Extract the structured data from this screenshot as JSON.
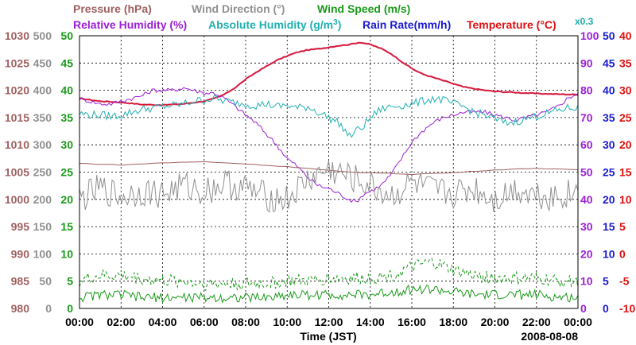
{
  "chart_data": {
    "type": "line",
    "title_rows": [
      [
        {
          "key": "pressure",
          "text": "Pressure (hPa)",
          "color": "#a06060"
        },
        {
          "key": "wind_dir",
          "text": "Wind Direction (°)",
          "color": "#909090"
        },
        {
          "key": "wind_speed",
          "text": "Wind Speed (m/s)",
          "color": "#1a9a1a"
        }
      ],
      [
        {
          "key": "rh",
          "text": "Relative Humidity (%)",
          "color": "#9b1fd6"
        },
        {
          "key": "abs_hum",
          "text": "Absolute Humidity (g/m",
          "sup": "3",
          "tail": ")",
          "color": "#20b0b0"
        },
        {
          "key": "rain",
          "text": "Rain Rate(mm/h)",
          "color": "#1a1ad0"
        },
        {
          "key": "temp",
          "text": "Temperature (°C)",
          "color": "#e01010"
        }
      ]
    ],
    "scale_note": "x0.3",
    "xlabel": "Time (JST)",
    "date": "2008-08-08",
    "x_ticks": [
      "00:00",
      "02:00",
      "04:00",
      "06:00",
      "08:00",
      "10:00",
      "12:00",
      "14:00",
      "16:00",
      "18:00",
      "20:00",
      "22:00",
      "00:00"
    ],
    "xlim_hours": [
      0,
      24
    ],
    "axes": {
      "pressure": {
        "ylim": [
          980,
          1030
        ],
        "ticks": [
          "1030",
          "1025",
          "1020",
          "1015",
          "1010",
          "1005",
          "1000",
          "995",
          "990",
          "985",
          "980"
        ],
        "color": "#a06060"
      },
      "wind_dir": {
        "ylim": [
          0,
          500
        ],
        "ticks": [
          "500",
          "450",
          "400",
          "350",
          "300",
          "250",
          "200",
          "150",
          "100",
          "50",
          "0"
        ],
        "color": "#909090"
      },
      "wind_speed": {
        "ylim": [
          0,
          50
        ],
        "ticks": [
          "50",
          "45",
          "40",
          "35",
          "30",
          "25",
          "20",
          "15",
          "10",
          "5",
          "0"
        ],
        "color": "#1a9a1a"
      },
      "rh": {
        "ylim": [
          0,
          100
        ],
        "ticks": [
          "100",
          "90",
          "80",
          "70",
          "60",
          "50",
          "40",
          "30",
          "20",
          "10",
          "0"
        ],
        "color": "#9b1fd6"
      },
      "rain": {
        "ylim": [
          0,
          50
        ],
        "ticks": [
          "50",
          "45",
          "40",
          "35",
          "30",
          "25",
          "20",
          "15",
          "10",
          "5",
          "0"
        ],
        "color": "#1a1ad0"
      },
      "temp": {
        "ylim": [
          -10,
          40
        ],
        "ticks": [
          "40",
          "35",
          "30",
          "25",
          "20",
          "15",
          "10",
          "5",
          "0",
          "-5",
          "-10"
        ],
        "color": "#e01010"
      },
      "abs_hum": {
        "ylim": [
          0,
          150
        ],
        "display_scale": 0.3
      }
    },
    "series": [
      {
        "name": "Temperature",
        "unit": "°C",
        "color": "#e01010",
        "x": [
          0,
          1,
          2,
          3,
          4,
          5,
          6,
          6.5,
          7,
          7.5,
          8,
          8.5,
          9,
          9.5,
          10,
          10.5,
          11,
          11.5,
          12,
          12.5,
          13,
          13.5,
          14,
          14.5,
          15,
          15.5,
          16,
          16.5,
          17,
          17.5,
          18,
          18.5,
          19,
          19.5,
          20,
          21,
          22,
          23,
          24
        ],
        "values": [
          28.5,
          28,
          27.8,
          27.4,
          27.3,
          27.5,
          28,
          28.5,
          29.3,
          30.5,
          32,
          33.3,
          34.4,
          35.5,
          36.3,
          37,
          37.4,
          37.6,
          37.9,
          38.2,
          38.4,
          38.8,
          38.4,
          37.7,
          36.7,
          35.3,
          34,
          33,
          32.4,
          31.8,
          31.2,
          30.6,
          30.3,
          30,
          29.8,
          29.6,
          29.4,
          29.3,
          29.2
        ]
      },
      {
        "name": "Relative Humidity",
        "unit": "%",
        "color": "#9b1fd6",
        "x": [
          0,
          0.5,
          1,
          1.5,
          2,
          2.5,
          3,
          3.5,
          4,
          4.5,
          5,
          5.5,
          6,
          6.5,
          7,
          7.5,
          8,
          8.5,
          9,
          9.5,
          10,
          10.5,
          11,
          11.5,
          12,
          12.5,
          13,
          13.3,
          13.7,
          14,
          14.5,
          15,
          15.5,
          16,
          16.5,
          17,
          17.5,
          18,
          18.5,
          19,
          19.5,
          20,
          20.5,
          21,
          21.5,
          22,
          22.5,
          23,
          23.5,
          24
        ],
        "values": [
          77,
          76,
          75,
          75,
          76,
          77,
          78,
          80,
          80,
          80,
          81,
          80,
          79,
          79,
          77,
          74,
          71,
          68,
          64,
          60,
          55,
          52,
          48,
          45,
          44,
          42,
          40,
          39,
          42,
          43,
          45,
          49,
          55,
          61,
          65,
          68,
          70,
          71,
          72,
          72,
          72,
          71,
          70,
          69,
          70,
          71,
          72,
          74,
          77,
          79
        ]
      },
      {
        "name": "Absolute Humidity",
        "unit": "g/m3 x0.3",
        "color": "#20b0b0",
        "x": [
          0,
          0.5,
          1,
          1.5,
          2,
          2.5,
          3,
          3.5,
          4,
          4.5,
          5,
          5.5,
          6,
          6.5,
          7,
          7.5,
          8,
          8.5,
          9,
          9.5,
          10,
          10.5,
          11,
          11.5,
          12,
          12.5,
          13,
          13.3,
          13.7,
          14,
          14.5,
          15,
          15.5,
          16,
          16.5,
          17,
          17.5,
          18,
          18.5,
          19,
          19.5,
          20,
          20.5,
          21,
          21.5,
          22,
          22.5,
          23,
          23.5,
          24
        ],
        "values": [
          71.5,
          71,
          71,
          70.5,
          71,
          72,
          73,
          73.5,
          74,
          74.5,
          75,
          76,
          76.5,
          77,
          76,
          75.5,
          75,
          74.5,
          75,
          74,
          74.5,
          73.5,
          74,
          72,
          70,
          68,
          63,
          65,
          67,
          70,
          73,
          74,
          74.5,
          75,
          76,
          77,
          76.5,
          75,
          74,
          72,
          71,
          69.5,
          68,
          68.5,
          69.5,
          70.5,
          71.5,
          72.5,
          73.5,
          73.5
        ]
      },
      {
        "name": "Pressure",
        "unit": "hPa",
        "color": "#a06060",
        "x": [
          0,
          2,
          4,
          6,
          8,
          10,
          12,
          13,
          14,
          16,
          18,
          20,
          22,
          24
        ],
        "values": [
          1006.6,
          1006.3,
          1006.7,
          1006.9,
          1006.5,
          1006.0,
          1005.3,
          1005.0,
          1004.9,
          1004.6,
          1004.9,
          1005.4,
          1005.7,
          1005.4
        ]
      },
      {
        "name": "Wind Direction",
        "unit": "°",
        "color": "#909090",
        "x": [
          0,
          1,
          2,
          3,
          4,
          5,
          6,
          7,
          8,
          9,
          10,
          11,
          12,
          13,
          14,
          15,
          16,
          17,
          18,
          19,
          20,
          21,
          22,
          23,
          24
        ],
        "values": [
          200,
          220,
          205,
          215,
          210,
          225,
          215,
          230,
          220,
          205,
          200,
          235,
          255,
          240,
          225,
          205,
          230,
          215,
          210,
          220,
          200,
          220,
          210,
          205,
          215
        ]
      },
      {
        "name": "Wind Speed (max)",
        "unit": "m/s",
        "color": "#1a9a1a",
        "dashed": true,
        "x": [
          0,
          1,
          2,
          3,
          4,
          5,
          6,
          7,
          8,
          9,
          10,
          11,
          12,
          13,
          14,
          15,
          16,
          17,
          18,
          19,
          20,
          21,
          22,
          23,
          24
        ],
        "values": [
          5,
          6,
          6,
          5.5,
          5,
          5,
          4.5,
          4.5,
          4.5,
          4.5,
          5,
          5,
          5.5,
          5.5,
          5.5,
          6,
          7.5,
          8.5,
          7,
          6,
          5.5,
          5.5,
          5.5,
          5,
          5
        ]
      },
      {
        "name": "Wind Speed (mean)",
        "unit": "m/s",
        "color": "#1a9a1a",
        "dashed": false,
        "x": [
          0,
          1,
          2,
          3,
          4,
          5,
          6,
          7,
          8,
          9,
          10,
          11,
          12,
          13,
          14,
          15,
          16,
          17,
          18,
          19,
          20,
          21,
          22,
          23,
          24
        ],
        "values": [
          2,
          2.5,
          2.5,
          2,
          2,
          2,
          2,
          2,
          2,
          2,
          2.5,
          2.5,
          2.5,
          2.5,
          2.5,
          3,
          3.5,
          3.5,
          3,
          2.5,
          2.5,
          2.5,
          2.5,
          2,
          2
        ]
      },
      {
        "name": "Rain Rate",
        "unit": "mm/h",
        "color": "#1a1ad0",
        "x": [
          0,
          24
        ],
        "values": [
          0,
          0
        ]
      }
    ]
  }
}
